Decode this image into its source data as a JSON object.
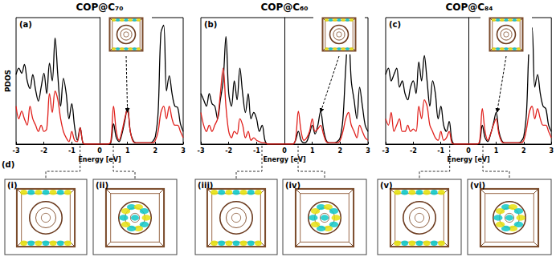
{
  "chart_data": [
    {
      "type": "line",
      "title": "COP@C₇₀",
      "annotations": [
        "(a)"
      ],
      "ylabel": "PDOS",
      "xlabel": "Energy [eV]",
      "x": [
        -3.0,
        -2.9,
        -2.8,
        -2.7,
        -2.6,
        -2.5,
        -2.4,
        -2.3,
        -2.2,
        -2.1,
        -2.0,
        -1.9,
        -1.8,
        -1.7,
        -1.6,
        -1.5,
        -1.4,
        -1.3,
        -1.2,
        -1.1,
        -1.0,
        -0.9,
        -0.8,
        -0.7,
        -0.6,
        -0.5,
        -0.4,
        -0.3,
        -0.2,
        -0.1,
        0.0,
        0.1,
        0.2,
        0.3,
        0.4,
        0.5,
        0.6,
        0.7,
        0.8,
        0.9,
        1.0,
        1.1,
        1.2,
        1.3,
        1.4,
        1.5,
        1.6,
        1.7,
        1.8,
        1.9,
        2.0,
        2.1,
        2.2,
        2.3,
        2.4,
        2.5,
        2.6,
        2.7,
        2.8,
        2.9,
        3.0
      ],
      "series": [
        {
          "color": "#000000",
          "values": [
            5.5,
            6.0,
            5.6,
            6.3,
            5.0,
            4.4,
            5.5,
            4.3,
            3.4,
            4.5,
            5.6,
            4.0,
            6.4,
            5.0,
            8.4,
            5.4,
            3.0,
            5.2,
            4.0,
            2.0,
            3.2,
            1.4,
            0.3,
            1.3,
            0.1,
            0,
            0,
            0,
            0,
            0,
            0,
            0,
            0,
            0,
            0.1,
            1.6,
            0.5,
            0.2,
            0.8,
            1.8,
            2.9,
            1.0,
            0.3,
            0.1,
            0.1,
            0.1,
            0.1,
            0.1,
            0.1,
            0.2,
            0.6,
            2.5,
            8.8,
            9.4,
            4.2,
            5.4,
            4.0,
            3.0,
            2.9,
            1.6,
            1.0
          ]
        },
        {
          "color": "#e0201c",
          "values": [
            3.0,
            2.0,
            2.6,
            2.0,
            1.5,
            3.0,
            2.0,
            1.5,
            1.0,
            1.5,
            1.0,
            1.2,
            4.0,
            2.5,
            4.2,
            3.5,
            2.0,
            1.0,
            0.5,
            0.2,
            1.0,
            0.3,
            0.2,
            1.3,
            0.1,
            0,
            0,
            0,
            0,
            0,
            0,
            0,
            0,
            0,
            0.2,
            3.0,
            1.0,
            0.3,
            1.0,
            2.0,
            2.8,
            1.0,
            0.2,
            0.1,
            0.1,
            0.1,
            0.1,
            0.1,
            0.1,
            0.1,
            0.3,
            1.0,
            2.5,
            3.0,
            2.0,
            3.0,
            2.0,
            1.5,
            1.5,
            1.0,
            0.5
          ]
        }
      ],
      "xlim": [
        -3,
        3
      ],
      "xticks": [
        -3,
        -2,
        -1,
        0,
        1,
        2,
        3
      ],
      "ylim": [
        0,
        10
      ],
      "tick_labels": "x",
      "grid": false
    },
    {
      "type": "line",
      "title": "COP@C₆₀",
      "annotations": [
        "(b)"
      ],
      "xlabel": "Energy [eV]",
      "x": [
        -3.0,
        -2.9,
        -2.8,
        -2.7,
        -2.6,
        -2.5,
        -2.4,
        -2.3,
        -2.2,
        -2.1,
        -2.0,
        -1.9,
        -1.8,
        -1.7,
        -1.6,
        -1.5,
        -1.4,
        -1.3,
        -1.2,
        -1.1,
        -1.0,
        -0.9,
        -0.8,
        -0.7,
        -0.6,
        -0.5,
        -0.4,
        -0.3,
        -0.2,
        -0.1,
        0.0,
        0.1,
        0.2,
        0.3,
        0.4,
        0.5,
        0.6,
        0.7,
        0.8,
        0.9,
        1.0,
        1.1,
        1.2,
        1.3,
        1.4,
        1.5,
        1.6,
        1.7,
        1.8,
        1.9,
        2.0,
        2.1,
        2.2,
        2.3,
        2.4,
        2.5,
        2.6,
        2.7,
        2.8,
        2.9,
        3.0
      ],
      "series": [
        {
          "color": "#000000",
          "values": [
            4.0,
            3.5,
            3.0,
            4.0,
            3.2,
            3.0,
            2.0,
            3.5,
            5.0,
            8.5,
            4.0,
            3.0,
            5.0,
            3.5,
            6.0,
            4.0,
            2.5,
            4.0,
            2.0,
            2.5,
            2.0,
            1.0,
            1.5,
            0.3,
            0,
            0,
            0,
            0,
            0,
            0,
            0,
            0,
            0,
            0,
            0.3,
            1.0,
            0.3,
            0.1,
            0.2,
            0.8,
            1.5,
            0.8,
            1.5,
            2.6,
            1.2,
            0.3,
            0.1,
            0.1,
            0.1,
            0.2,
            0.5,
            2.0,
            6.0,
            9.0,
            5.0,
            3.5,
            2.0,
            4.5,
            3.0,
            1.5,
            1.0
          ]
        },
        {
          "color": "#e0201c",
          "values": [
            2.5,
            1.5,
            1.0,
            1.5,
            1.0,
            1.5,
            2.0,
            4.0,
            6.0,
            3.0,
            1.0,
            0.5,
            1.0,
            0.8,
            2.0,
            1.5,
            0.5,
            1.0,
            0.3,
            0.5,
            0.3,
            0.2,
            0.1,
            0.1,
            0,
            0,
            0,
            0,
            0,
            0,
            0,
            0,
            0,
            0,
            0.4,
            2.6,
            1.0,
            0.3,
            0.5,
            1.0,
            2.0,
            1.0,
            1.2,
            1.5,
            0.8,
            0.2,
            0.1,
            0.1,
            0.1,
            0.1,
            0.3,
            1.0,
            2.0,
            2.5,
            1.5,
            1.0,
            0.5,
            1.5,
            1.0,
            0.5,
            0.3
          ]
        }
      ],
      "xlim": [
        -3,
        3
      ],
      "xticks": [
        -3,
        -2,
        -1,
        0,
        1,
        2,
        3
      ],
      "ylim": [
        0,
        10
      ],
      "tick_labels": "x",
      "grid": false
    },
    {
      "type": "line",
      "title": "COP@C₈₄",
      "annotations": [
        "(c)"
      ],
      "xlabel": "Energy [eV]",
      "x": [
        -3.0,
        -2.9,
        -2.8,
        -2.7,
        -2.6,
        -2.5,
        -2.4,
        -2.3,
        -2.2,
        -2.1,
        -2.0,
        -1.9,
        -1.8,
        -1.7,
        -1.6,
        -1.5,
        -1.4,
        -1.3,
        -1.2,
        -1.1,
        -1.0,
        -0.9,
        -0.8,
        -0.7,
        -0.6,
        -0.5,
        -0.4,
        -0.3,
        -0.2,
        -0.1,
        0.0,
        0.1,
        0.2,
        0.3,
        0.4,
        0.5,
        0.6,
        0.7,
        0.8,
        0.9,
        1.0,
        1.1,
        1.2,
        1.3,
        1.4,
        1.5,
        1.6,
        1.7,
        1.8,
        1.9,
        2.0,
        2.1,
        2.2,
        2.3,
        2.4,
        2.5,
        2.6,
        2.7,
        2.8,
        2.9,
        3.0
      ],
      "series": [
        {
          "color": "#000000",
          "values": [
            5.5,
            6.0,
            5.0,
            5.5,
            6.0,
            4.5,
            5.0,
            4.0,
            3.5,
            4.5,
            5.0,
            4.0,
            6.5,
            5.0,
            7.0,
            5.0,
            3.0,
            5.0,
            4.0,
            2.0,
            3.0,
            1.5,
            1.0,
            1.8,
            0.3,
            0,
            0,
            0,
            0,
            0,
            0,
            0,
            0,
            0,
            0.1,
            1.5,
            0.5,
            0.2,
            0.8,
            1.6,
            2.5,
            1.0,
            0.3,
            0.1,
            0.1,
            0.1,
            0.1,
            0.1,
            0.1,
            0.2,
            0.6,
            2.5,
            8.0,
            9.2,
            4.5,
            5.5,
            4.0,
            3.0,
            2.8,
            1.5,
            1.0
          ]
        },
        {
          "color": "#e0201c",
          "values": [
            2.0,
            1.5,
            2.5,
            1.0,
            1.5,
            2.0,
            1.0,
            1.0,
            1.5,
            1.0,
            1.2,
            1.0,
            3.0,
            2.0,
            3.5,
            3.0,
            1.5,
            1.0,
            0.5,
            0.3,
            1.0,
            0.3,
            0.5,
            1.0,
            0.1,
            0,
            0,
            0,
            0,
            0,
            0,
            0,
            0,
            0,
            0.2,
            2.8,
            1.0,
            0.3,
            0.8,
            1.5,
            2.0,
            0.8,
            0.2,
            0.1,
            0.1,
            0.1,
            0.1,
            0.1,
            0.1,
            0.1,
            0.3,
            1.2,
            2.5,
            3.0,
            2.0,
            2.8,
            2.0,
            1.5,
            1.5,
            1.0,
            0.5
          ]
        }
      ],
      "xlim": [
        -3,
        3
      ],
      "xticks": [
        -3,
        -2,
        -1,
        0,
        1,
        2,
        3
      ],
      "ylim": [
        0,
        10
      ],
      "tick_labels": "x",
      "grid": false
    }
  ],
  "orbital_panels": {
    "label": "(d)",
    "panels": [
      "(i)",
      "(ii)",
      "(iii)",
      "(iv)",
      "(v)",
      "(vi)"
    ]
  }
}
